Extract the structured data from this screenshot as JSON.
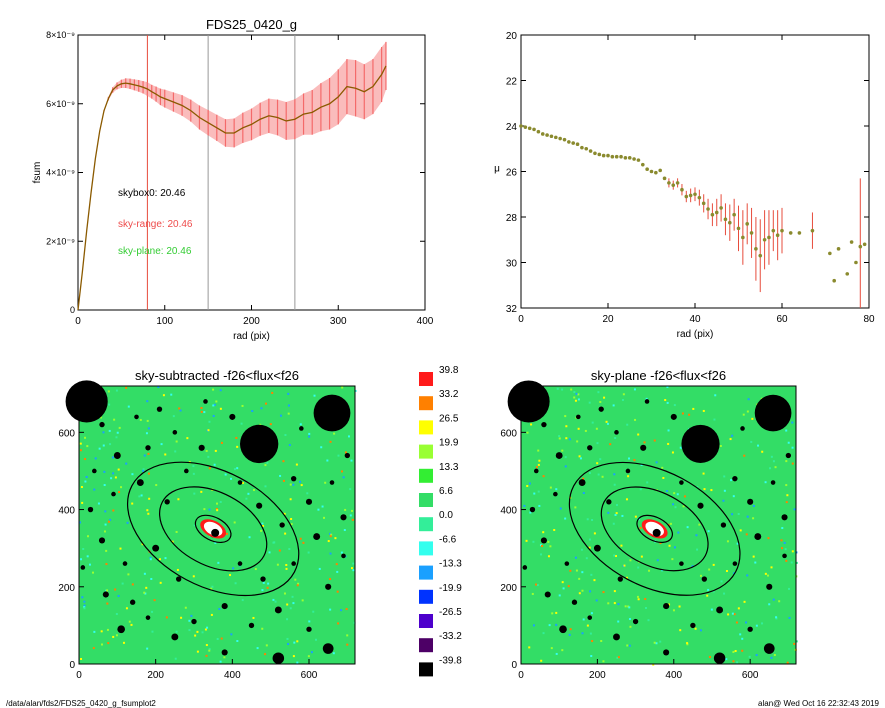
{
  "footer": {
    "path": "/data/alan/fds2/FDS25_0420_g_fsumplot2",
    "stamp": "alan@  Wed Oct 16 22:32:43 2019"
  },
  "colors": {
    "profile_line": "#8b5a00",
    "error_band": "#f46a6a",
    "marker_red": "#e74c3c",
    "marker_gray": "#999999",
    "sky_box": "#000000",
    "sky_range": "#ee4b4b",
    "sky_plane": "#33cc33",
    "map_bg": "#33dd66",
    "mask": "#000000"
  },
  "chart_data": [
    {
      "type": "line",
      "title": "FDS25_0420_g",
      "xlabel": "rad (pix)",
      "ylabel": "fsum",
      "xlim": [
        0,
        400
      ],
      "ylim": [
        0,
        8e-09
      ],
      "xticks": [
        "0",
        "100",
        "200",
        "300",
        "400"
      ],
      "yticks": [
        "0",
        "2×10⁻⁹",
        "4×10⁻⁹",
        "6×10⁻⁹",
        "8×10⁻⁹"
      ],
      "yticks_values": [
        0,
        2e-09,
        4e-09,
        6e-09,
        8e-09
      ],
      "vlines": [
        {
          "x": 80,
          "color": "#e74c3c"
        },
        {
          "x": 150,
          "color": "#999999"
        },
        {
          "x": 250,
          "color": "#999999"
        }
      ],
      "annotations": [
        {
          "text": "skybox0: 20.46",
          "color": "#000000"
        },
        {
          "text": "sky-range: 20.46",
          "color": "#ee4b4b"
        },
        {
          "text": "sky-plane: 20.46",
          "color": "#33cc33"
        }
      ],
      "series": [
        {
          "x": [
            0,
            5,
            10,
            15,
            20,
            25,
            30,
            35,
            40,
            45,
            50,
            55,
            60,
            65,
            70,
            75,
            80,
            85,
            90,
            95,
            100,
            110,
            120,
            130,
            140,
            150,
            160,
            170,
            180,
            190,
            200,
            210,
            220,
            230,
            240,
            250,
            260,
            270,
            280,
            290,
            300,
            310,
            320,
            330,
            340,
            350,
            355
          ],
          "y": [
            0,
            1.1e-09,
            2.3e-09,
            3.4e-09,
            4.4e-09,
            5.2e-09,
            5.8e-09,
            6.15e-09,
            6.4e-09,
            6.52e-09,
            6.58e-09,
            6.6e-09,
            6.58e-09,
            6.55e-09,
            6.52e-09,
            6.48e-09,
            6.43e-09,
            6.35e-09,
            6.28e-09,
            6.2e-09,
            6.15e-09,
            6.05e-09,
            5.95e-09,
            5.8e-09,
            5.6e-09,
            5.45e-09,
            5.3e-09,
            5.15e-09,
            5.15e-09,
            5.3e-09,
            5.4e-09,
            5.55e-09,
            5.65e-09,
            5.6e-09,
            5.5e-09,
            5.55e-09,
            5.7e-09,
            5.75e-09,
            5.9e-09,
            6e-09,
            6.2e-09,
            6.5e-09,
            6.45e-09,
            6.35e-09,
            6.5e-09,
            6.85e-09,
            7.1e-09
          ],
          "err": [
            0,
            0,
            0,
            0,
            0,
            0,
            2e-11,
            5e-11,
            8e-11,
            1e-10,
            1.2e-10,
            1.4e-10,
            1.5e-10,
            1.6e-10,
            1.7e-10,
            1.8e-10,
            2e-10,
            2e-10,
            2.2e-10,
            2.4e-10,
            2.6e-10,
            2.8e-10,
            3e-10,
            3.2e-10,
            3.5e-10,
            3.7e-10,
            3.8e-10,
            4e-10,
            4.2e-10,
            4.4e-10,
            4.6e-10,
            4.8e-10,
            5e-10,
            5.2e-10,
            5.5e-10,
            5.8e-10,
            6e-10,
            6.5e-10,
            7e-10,
            7.5e-10,
            8e-10,
            8e-10,
            8.2e-10,
            8e-10,
            8e-10,
            8e-10,
            7e-10
          ]
        }
      ]
    },
    {
      "type": "scatter",
      "xlabel": "rad (pix)",
      "ylabel": "μ",
      "xlim": [
        0,
        80
      ],
      "ylim": [
        32,
        20
      ],
      "xticks": [
        "0",
        "20",
        "40",
        "60",
        "80"
      ],
      "yticks": [
        "20",
        "22",
        "24",
        "26",
        "28",
        "30",
        "32"
      ],
      "yticks_values": [
        20,
        22,
        24,
        26,
        28,
        30,
        32
      ],
      "series": [
        {
          "x": [
            0,
            1,
            2,
            3,
            4,
            5,
            6,
            7,
            8,
            9,
            10,
            11,
            12,
            13,
            14,
            15,
            16,
            17,
            18,
            19,
            20,
            21,
            22,
            23,
            24,
            25,
            26,
            27,
            28,
            29,
            30,
            31,
            32,
            33,
            34,
            35,
            36,
            37,
            38,
            39,
            40,
            41,
            42,
            43,
            44,
            45,
            46,
            47,
            48,
            49,
            50,
            51,
            52,
            53,
            54,
            55,
            56,
            57,
            58,
            59,
            60,
            62,
            64,
            67,
            71,
            72,
            73,
            75,
            76,
            77,
            78,
            79
          ],
          "y": [
            24.0,
            24.05,
            24.1,
            24.15,
            24.25,
            24.35,
            24.4,
            24.45,
            24.5,
            24.55,
            24.6,
            24.7,
            24.75,
            24.8,
            24.95,
            25.0,
            25.1,
            25.2,
            25.25,
            25.3,
            25.3,
            25.35,
            25.35,
            25.35,
            25.4,
            25.4,
            25.45,
            25.5,
            25.7,
            25.9,
            26.0,
            26.05,
            25.95,
            26.3,
            26.5,
            26.6,
            26.5,
            26.8,
            27.1,
            27.05,
            27.0,
            27.15,
            27.4,
            27.65,
            27.9,
            27.8,
            27.6,
            28.1,
            28.25,
            27.9,
            28.5,
            28.9,
            28.3,
            28.7,
            29.4,
            29.7,
            29.0,
            28.9,
            28.6,
            28.8,
            28.6,
            28.7,
            28.7,
            28.6,
            29.6,
            30.8,
            29.4,
            30.5,
            29.1,
            30.0,
            29.3,
            29.2
          ],
          "err": [
            0,
            0,
            0,
            0,
            0,
            0,
            0,
            0,
            0,
            0,
            0,
            0,
            0,
            0,
            0,
            0,
            0,
            0,
            0,
            0,
            0,
            0,
            0,
            0,
            0,
            0,
            0,
            0,
            0,
            0,
            0,
            0,
            0,
            0,
            0.2,
            0.2,
            0.2,
            0.25,
            0.25,
            0.3,
            0.3,
            0.35,
            0.4,
            0.45,
            0.5,
            0.6,
            0.6,
            0.7,
            0.8,
            0.7,
            1.0,
            1.2,
            0.9,
            1.1,
            1.4,
            1.6,
            1.3,
            1.2,
            0.9,
            1.1,
            1.0,
            0,
            0,
            0.8,
            0,
            0,
            0,
            0,
            0,
            0,
            3.0,
            0
          ]
        }
      ]
    },
    {
      "type": "heatmap",
      "title": "sky-subtracted -f26<flux<f26",
      "xlim": [
        0,
        720
      ],
      "ylim": [
        0,
        720
      ],
      "xticks": [
        "0",
        "200",
        "400",
        "600"
      ],
      "yticks": [
        "0",
        "200",
        "400",
        "600"
      ],
      "ellipses": [
        {
          "cx": 350,
          "cy": 350,
          "rx": 240,
          "ry": 150,
          "angle": -28
        },
        {
          "cx": 350,
          "cy": 350,
          "rx": 150,
          "ry": 95,
          "angle": -28
        },
        {
          "cx": 350,
          "cy": 350,
          "rx": 50,
          "ry": 30,
          "angle": -28
        }
      ]
    },
    {
      "type": "heatmap",
      "title": "sky-plane -f26<flux<f26",
      "xlim": [
        0,
        720
      ],
      "ylim": [
        0,
        720
      ],
      "xticks": [
        "0",
        "200",
        "400",
        "600"
      ],
      "yticks": [
        "0",
        "200",
        "400",
        "600"
      ],
      "ellipses": [
        {
          "cx": 350,
          "cy": 350,
          "rx": 240,
          "ry": 150,
          "angle": -28
        },
        {
          "cx": 350,
          "cy": 350,
          "rx": 150,
          "ry": 95,
          "angle": -28
        },
        {
          "cx": 350,
          "cy": 350,
          "rx": 50,
          "ry": 30,
          "angle": -28
        }
      ]
    }
  ],
  "colorbar": {
    "labels": [
      "39.8",
      "33.2",
      "26.5",
      "19.9",
      "13.3",
      "6.6",
      "0.0",
      "-6.6",
      "-13.3",
      "-19.9",
      "-26.5",
      "-33.2",
      "-39.8"
    ],
    "colors": [
      "#ff1a1a",
      "#ff8000",
      "#ffff00",
      "#99ff33",
      "#33ee33",
      "#33dd66",
      "#33ee99",
      "#33ffee",
      "#1aa0ff",
      "#0033ff",
      "#4d00cc",
      "#4d0066",
      "#000000"
    ]
  },
  "masks": [
    {
      "x": 20,
      "y": 680,
      "r": 55
    },
    {
      "x": 660,
      "y": 650,
      "r": 48
    },
    {
      "x": 470,
      "y": 570,
      "r": 50
    },
    {
      "x": 350,
      "y": 340,
      "r": 12
    },
    {
      "x": 520,
      "y": 15,
      "r": 15
    },
    {
      "x": 110,
      "y": 90,
      "r": 10
    },
    {
      "x": 140,
      "y": 160,
      "r": 7
    },
    {
      "x": 70,
      "y": 180,
      "r": 8
    },
    {
      "x": 180,
      "y": 120,
      "r": 6
    },
    {
      "x": 250,
      "y": 70,
      "r": 9
    },
    {
      "x": 300,
      "y": 110,
      "r": 7
    },
    {
      "x": 380,
      "y": 150,
      "r": 8
    },
    {
      "x": 450,
      "y": 100,
      "r": 7
    },
    {
      "x": 520,
      "y": 140,
      "r": 9
    },
    {
      "x": 600,
      "y": 90,
      "r": 7
    },
    {
      "x": 650,
      "y": 200,
      "r": 8
    },
    {
      "x": 690,
      "y": 280,
      "r": 6
    },
    {
      "x": 620,
      "y": 330,
      "r": 9
    },
    {
      "x": 560,
      "y": 260,
      "r": 6
    },
    {
      "x": 480,
      "y": 220,
      "r": 7
    },
    {
      "x": 420,
      "y": 260,
      "r": 6
    },
    {
      "x": 260,
      "y": 220,
      "r": 7
    },
    {
      "x": 200,
      "y": 300,
      "r": 9
    },
    {
      "x": 120,
      "y": 260,
      "r": 6
    },
    {
      "x": 60,
      "y": 320,
      "r": 8
    },
    {
      "x": 30,
      "y": 400,
      "r": 7
    },
    {
      "x": 90,
      "y": 440,
      "r": 6
    },
    {
      "x": 160,
      "y": 470,
      "r": 9
    },
    {
      "x": 230,
      "y": 420,
      "r": 7
    },
    {
      "x": 280,
      "y": 500,
      "r": 6
    },
    {
      "x": 320,
      "y": 560,
      "r": 8
    },
    {
      "x": 250,
      "y": 600,
      "r": 6
    },
    {
      "x": 180,
      "y": 560,
      "r": 7
    },
    {
      "x": 100,
      "y": 540,
      "r": 9
    },
    {
      "x": 40,
      "y": 500,
      "r": 6
    },
    {
      "x": 560,
      "y": 480,
      "r": 7
    },
    {
      "x": 600,
      "y": 420,
      "r": 8
    },
    {
      "x": 660,
      "y": 470,
      "r": 6
    },
    {
      "x": 700,
      "y": 540,
      "r": 7
    },
    {
      "x": 580,
      "y": 610,
      "r": 6
    },
    {
      "x": 400,
      "y": 640,
      "r": 8
    },
    {
      "x": 330,
      "y": 680,
      "r": 6
    },
    {
      "x": 210,
      "y": 660,
      "r": 7
    },
    {
      "x": 150,
      "y": 640,
      "r": 6
    },
    {
      "x": 530,
      "y": 360,
      "r": 7
    },
    {
      "x": 470,
      "y": 410,
      "r": 8
    },
    {
      "x": 420,
      "y": 470,
      "r": 6
    },
    {
      "x": 60,
      "y": 620,
      "r": 7
    },
    {
      "x": 690,
      "y": 380,
      "r": 8
    },
    {
      "x": 10,
      "y": 250,
      "r": 6
    },
    {
      "x": 380,
      "y": 30,
      "r": 8
    },
    {
      "x": 650,
      "y": 40,
      "r": 14
    }
  ]
}
